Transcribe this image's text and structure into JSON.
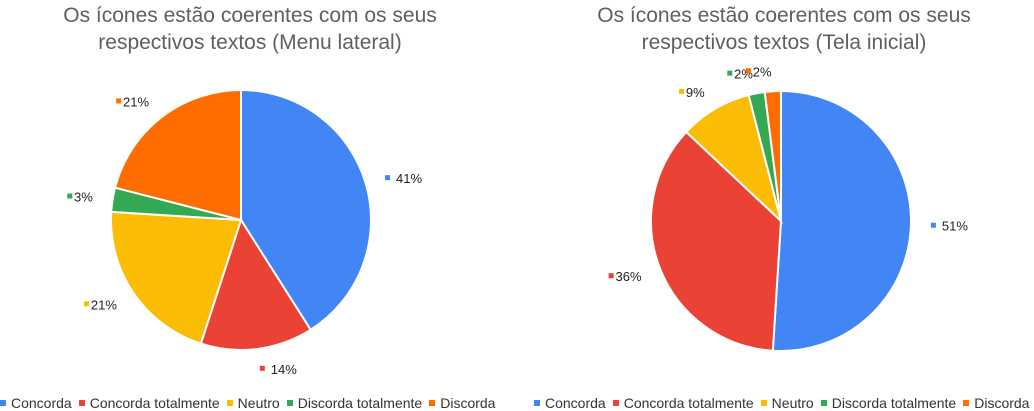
{
  "chart_data": [
    {
      "type": "pie",
      "title_lines": [
        "Os ícones estão coerentes com os seus",
        "respectivos textos (Menu lateral)"
      ],
      "slices": [
        {
          "name": "Concorda",
          "value": 41,
          "label": "41%",
          "color": "#4285f4"
        },
        {
          "name": "Concorda totalmente",
          "value": 14,
          "label": "14%",
          "color": "#ea4335"
        },
        {
          "name": "Neutro",
          "value": 21,
          "label": "21%",
          "color": "#fbbc04"
        },
        {
          "name": "Discorda totalmente",
          "value": 3,
          "label": "3%",
          "color": "#34a853"
        },
        {
          "name": "Discorda",
          "value": 21,
          "label": "21%",
          "color": "#ff6d01"
        }
      ],
      "legend_placement": "bottom"
    },
    {
      "type": "pie",
      "title_lines": [
        "Os ícones estão coerentes com os seus",
        "respectivos textos (Tela inicial)"
      ],
      "slices": [
        {
          "name": "Concorda",
          "value": 51,
          "label": "51%",
          "color": "#4285f4"
        },
        {
          "name": "Concorda totalmente",
          "value": 36,
          "label": "36%",
          "color": "#ea4335"
        },
        {
          "name": "Neutro",
          "value": 9,
          "label": "9%",
          "color": "#fbbc04"
        },
        {
          "name": "Discorda totalmente",
          "value": 2,
          "label": "2%",
          "color": "#34a853"
        },
        {
          "name": "Discorda",
          "value": 2,
          "label": "2%",
          "color": "#ff6d01"
        }
      ],
      "legend_placement": "bottom"
    }
  ]
}
